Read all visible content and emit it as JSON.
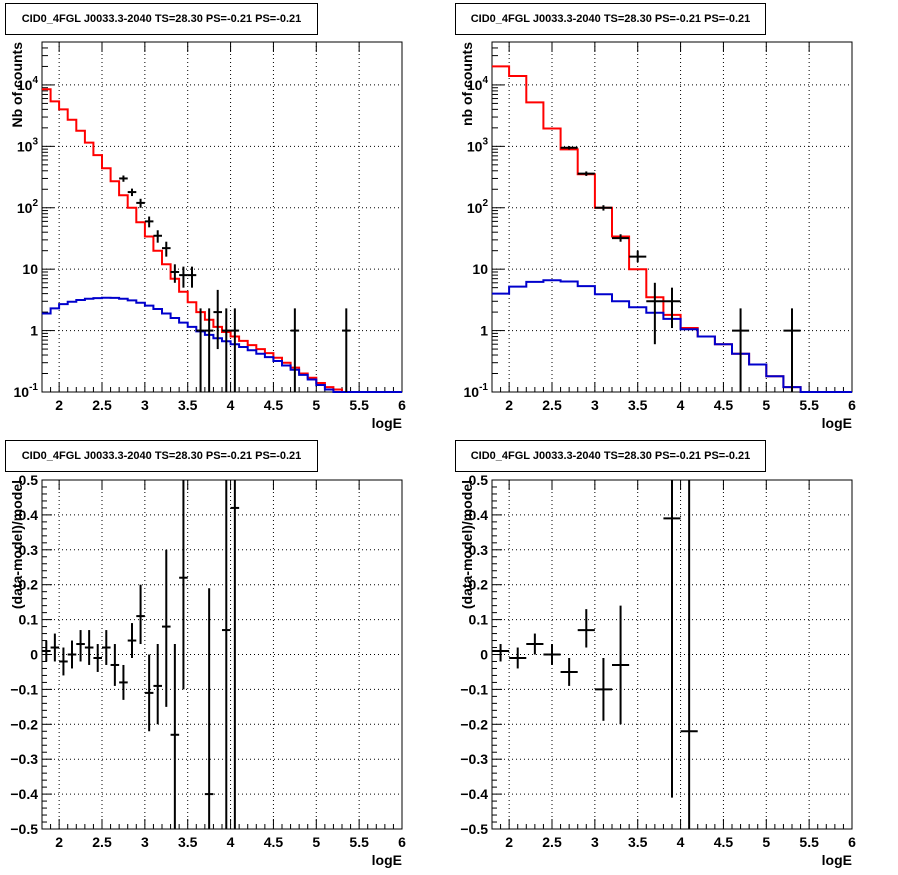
{
  "chart_data": [
    {
      "type": "line",
      "title": "CID0_4FGL J0033.3-2040 TS=28.30 PS=-0.21 PS=-0.21",
      "xlabel": "logE",
      "ylabel": "Nb of counts",
      "xlim": [
        1.8,
        6.0
      ],
      "ylim": [
        0.1,
        50000
      ],
      "yscale": "log",
      "grid": true,
      "xticks": [
        "2",
        "2.5",
        "3",
        "3.5",
        "4",
        "4.5",
        "5",
        "5.5",
        "6"
      ],
      "yticks": [
        "10^-1",
        "1",
        "10",
        "10^2",
        "10^3",
        "10^4"
      ],
      "series": [
        {
          "kind": "step",
          "color": "#ff0000",
          "x_edges": [
            1.8,
            1.9,
            2.0,
            2.1,
            2.2,
            2.3,
            2.4,
            2.5,
            2.6,
            2.7,
            2.8,
            2.9,
            3.0,
            3.1,
            3.2,
            3.3,
            3.4,
            3.5,
            3.6,
            3.7,
            3.8,
            3.9,
            4.0,
            4.1,
            4.2,
            4.3,
            4.4,
            4.5,
            4.6,
            4.7,
            4.8,
            4.9,
            5.0,
            5.1,
            5.2,
            5.3,
            5.4,
            5.5,
            5.6,
            5.7,
            5.8,
            5.9,
            6.0
          ],
          "values": [
            8500,
            5400,
            4000,
            2700,
            1800,
            1150,
            720,
            440,
            270,
            160,
            100,
            58,
            34,
            20,
            12,
            7,
            4.3,
            2.9,
            2.0,
            1.5,
            1.15,
            0.95,
            0.8,
            0.68,
            0.58,
            0.5,
            0.43,
            0.36,
            0.3,
            0.25,
            0.2,
            0.17,
            0.14,
            0.12,
            0.11,
            0.1,
            0.1,
            0.1,
            0.1,
            0.1,
            0.1,
            0.1
          ]
        },
        {
          "kind": "step",
          "color": "#0000cc",
          "x_edges": [
            1.8,
            1.9,
            2.0,
            2.1,
            2.2,
            2.3,
            2.4,
            2.5,
            2.6,
            2.7,
            2.8,
            2.9,
            3.0,
            3.1,
            3.2,
            3.3,
            3.4,
            3.5,
            3.6,
            3.7,
            3.8,
            3.9,
            4.0,
            4.1,
            4.2,
            4.3,
            4.4,
            4.5,
            4.6,
            4.7,
            4.8,
            4.9,
            5.0,
            5.1,
            5.2,
            5.3,
            5.4,
            5.5,
            5.6,
            5.7,
            5.8,
            5.9,
            6.0
          ],
          "values": [
            1.9,
            2.3,
            2.7,
            2.95,
            3.15,
            3.3,
            3.38,
            3.42,
            3.4,
            3.3,
            3.1,
            2.85,
            2.55,
            2.25,
            1.9,
            1.6,
            1.35,
            1.15,
            0.97,
            0.85,
            0.75,
            0.67,
            0.6,
            0.54,
            0.48,
            0.42,
            0.37,
            0.32,
            0.27,
            0.23,
            0.19,
            0.16,
            0.13,
            0.11,
            0.1,
            0.1,
            0.1,
            0.1,
            0.1,
            0.1,
            0.1,
            0.1
          ]
        },
        {
          "kind": "points",
          "color": "#000000",
          "x": [
            2.75,
            2.85,
            2.95,
            3.05,
            3.15,
            3.25,
            3.35,
            3.45,
            3.55,
            3.65,
            3.75,
            3.85,
            3.95,
            4.05,
            4.75,
            5.35
          ],
          "y": [
            300,
            180,
            120,
            60,
            35,
            22,
            9,
            8,
            8,
            1,
            1,
            2,
            1,
            1,
            1,
            1
          ],
          "y_low": [
            265,
            155,
            100,
            48,
            27,
            16,
            6,
            5,
            5,
            0.1,
            0.1,
            0.5,
            0.1,
            0.1,
            0.1,
            0.1
          ],
          "y_high": [
            335,
            205,
            140,
            72,
            43,
            28,
            12,
            11,
            11,
            2.3,
            2.3,
            4.6,
            2.3,
            2.3,
            2.3,
            2.3
          ],
          "x_err": 0.05
        }
      ]
    },
    {
      "type": "line",
      "title": "CID0_4FGL J0033.3-2040 TS=28.30 PS=-0.21 PS=-0.21",
      "xlabel": "logE",
      "ylabel": "nb of counts",
      "xlim": [
        1.8,
        6.0
      ],
      "ylim": [
        0.1,
        50000
      ],
      "yscale": "log",
      "grid": true,
      "xticks": [
        "2",
        "2.5",
        "3",
        "3.5",
        "4",
        "4.5",
        "5",
        "5.5",
        "6"
      ],
      "yticks": [
        "10^-1",
        "1",
        "10",
        "10^2",
        "10^3",
        "10^4"
      ],
      "series": [
        {
          "kind": "step",
          "color": "#ff0000",
          "x_edges": [
            1.8,
            2.0,
            2.2,
            2.4,
            2.6,
            2.8,
            3.0,
            3.2,
            3.4,
            3.6,
            3.8,
            4.0,
            4.2,
            4.4,
            4.6,
            4.8,
            5.0,
            5.2,
            5.4,
            5.6,
            5.8,
            6.0
          ],
          "values": [
            20000,
            14000,
            5200,
            1950,
            890,
            350,
            100,
            34,
            10,
            3.5,
            1.8,
            1.1,
            0.8,
            0.6,
            0.42,
            0.28,
            0.18,
            0.12,
            0.1,
            0.1,
            0.1
          ]
        },
        {
          "kind": "step",
          "color": "#0000cc",
          "x_edges": [
            1.8,
            2.0,
            2.2,
            2.4,
            2.6,
            2.8,
            3.0,
            3.2,
            3.4,
            3.6,
            3.8,
            4.0,
            4.2,
            4.4,
            4.6,
            4.8,
            5.0,
            5.2,
            5.4,
            5.6,
            5.8,
            6.0
          ],
          "values": [
            4.0,
            5.2,
            6.2,
            6.6,
            6.3,
            5.3,
            3.9,
            3.0,
            2.4,
            1.95,
            1.55,
            1.05,
            0.8,
            0.6,
            0.42,
            0.28,
            0.18,
            0.12,
            0.1,
            0.1,
            0.1
          ]
        },
        {
          "kind": "points",
          "color": "#000000",
          "x": [
            2.7,
            2.9,
            3.1,
            3.3,
            3.5,
            3.7,
            3.9,
            4.7,
            5.3
          ],
          "y": [
            950,
            360,
            100,
            32,
            16,
            3,
            3,
            1,
            1
          ],
          "y_low": [
            890,
            330,
            90,
            28,
            13,
            0.6,
            1.1,
            0.1,
            0.1
          ],
          "y_high": [
            1010,
            390,
            110,
            37,
            20,
            6,
            5,
            2.3,
            2.3
          ],
          "x_err": 0.1
        }
      ]
    },
    {
      "type": "scatter",
      "title": "CID0_4FGL J0033.3-2040 TS=28.30 PS=-0.21 PS=-0.21",
      "xlabel": "logE",
      "ylabel": "(data-model)/model",
      "xlim": [
        1.8,
        6.0
      ],
      "ylim": [
        -0.5,
        0.5
      ],
      "grid": true,
      "xticks": [
        "2",
        "2.5",
        "3",
        "3.5",
        "4",
        "4.5",
        "5",
        "5.5",
        "6"
      ],
      "yticks": [
        "−0.5",
        "−0.4",
        "−0.3",
        "−0.2",
        "−0.1",
        "0",
        "0.1",
        "0.2",
        "0.3",
        "0.4",
        "0.5"
      ],
      "series": [
        {
          "kind": "points",
          "color": "#000000",
          "x": [
            1.85,
            1.95,
            2.05,
            2.15,
            2.25,
            2.35,
            2.45,
            2.55,
            2.65,
            2.75,
            2.85,
            2.95,
            3.05,
            3.15,
            3.25,
            3.35,
            3.45,
            3.75,
            3.95,
            4.05
          ],
          "y": [
            0.01,
            0.02,
            -0.02,
            0.0,
            0.03,
            0.02,
            -0.01,
            0.02,
            -0.03,
            -0.08,
            0.04,
            0.11,
            -0.11,
            -0.09,
            0.08,
            -0.23,
            0.22,
            -0.4,
            0.07,
            0.42
          ],
          "y_low": [
            -0.02,
            -0.02,
            -0.06,
            -0.04,
            -0.02,
            -0.03,
            -0.05,
            -0.03,
            -0.09,
            -0.13,
            -0.01,
            0.03,
            -0.22,
            -0.2,
            -0.15,
            -0.5,
            -0.1,
            -0.5,
            -0.5,
            -0.5
          ],
          "y_high": [
            0.04,
            0.06,
            0.02,
            0.04,
            0.07,
            0.07,
            0.03,
            0.07,
            0.03,
            -0.03,
            0.09,
            0.2,
            0.0,
            0.03,
            0.3,
            0.03,
            0.5,
            0.19,
            0.5,
            0.5
          ],
          "x_err": 0.05
        }
      ]
    },
    {
      "type": "scatter",
      "title": "CID0_4FGL J0033.3-2040 TS=28.30 PS=-0.21 PS=-0.21",
      "xlabel": "logE",
      "ylabel": "(data-model)/model",
      "xlim": [
        1.8,
        6.0
      ],
      "ylim": [
        -0.5,
        0.5
      ],
      "grid": true,
      "xticks": [
        "2",
        "2.5",
        "3",
        "3.5",
        "4",
        "4.5",
        "5",
        "5.5",
        "6"
      ],
      "yticks": [
        "−0.5",
        "−0.4",
        "−0.3",
        "−0.2",
        "−0.1",
        "0",
        "0.1",
        "0.2",
        "0.3",
        "0.4",
        "0.5"
      ],
      "series": [
        {
          "kind": "points",
          "color": "#000000",
          "x": [
            1.9,
            2.1,
            2.3,
            2.5,
            2.7,
            2.9,
            3.1,
            3.3,
            3.9,
            4.1
          ],
          "y": [
            0.01,
            -0.01,
            0.03,
            0.0,
            -0.05,
            0.07,
            -0.1,
            -0.03,
            0.39,
            -0.22
          ],
          "y_low": [
            -0.02,
            -0.04,
            0.0,
            -0.03,
            -0.09,
            0.02,
            -0.19,
            -0.2,
            -0.41,
            -0.5
          ],
          "y_high": [
            0.03,
            0.02,
            0.06,
            0.03,
            -0.01,
            0.13,
            -0.01,
            0.14,
            0.5,
            0.5
          ],
          "x_err": 0.1
        }
      ]
    }
  ]
}
